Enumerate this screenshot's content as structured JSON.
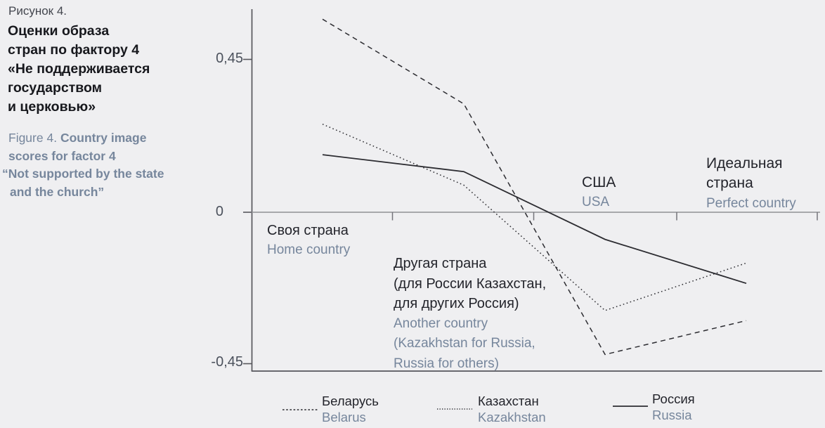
{
  "figure": {
    "label_ru": "Рисунок 4.",
    "title_ru_lines": [
      "Оценки образа",
      "стран по фактору 4",
      "«Не поддерживается",
      "государством",
      "и церковью»"
    ],
    "label_en": "Figure 4.",
    "title_en_bold_line1": "Country image",
    "title_en_lines": [
      "scores for factor 4",
      "“Not supported by the state",
      "and the church”"
    ]
  },
  "y_axis": {
    "tick_labels": [
      "0,45",
      "0",
      "-0,45"
    ]
  },
  "category_labels": {
    "home": {
      "ru": "Своя страна",
      "en": "Home country"
    },
    "another": {
      "ru_lines": [
        "Другая страна",
        "(для России Казахстан,",
        "для других Россия)"
      ],
      "en_lines": [
        "Another country",
        "(Kazakhstan for Russia,",
        "Russia for others)"
      ]
    },
    "usa": {
      "ru": "США",
      "en": "USA"
    },
    "perfect": {
      "ru_lines": [
        "Идеальная",
        "страна"
      ],
      "en": "Perfect country"
    }
  },
  "legend": {
    "items": [
      {
        "ru": "Беларусь",
        "en": "Belarus",
        "style": "dashed"
      },
      {
        "ru": "Казахстан",
        "en": "Kazakhstan",
        "style": "dotted"
      },
      {
        "ru": "Россия",
        "en": "Russia",
        "style": "solid"
      }
    ]
  },
  "colors": {
    "background": "#efeff1",
    "text_dark": "#1e1f24",
    "text_blue_gray": "#76869c",
    "series_line": "#2c2c31",
    "axis": "#56565c",
    "zero_line": "#8f9094"
  },
  "chart_data": {
    "type": "line",
    "categories": [
      "Своя страна (Home country)",
      "Другая страна (Another country)",
      "США (USA)",
      "Идеальная страна (Perfect country)"
    ],
    "series": [
      {
        "name": "Беларусь (Belarus)",
        "line_style": "dashed",
        "values": [
          0.57,
          0.32,
          -0.42,
          -0.32
        ]
      },
      {
        "name": "Казахстан (Kazakhstan)",
        "line_style": "dotted",
        "values": [
          0.26,
          0.08,
          -0.29,
          -0.15
        ]
      },
      {
        "name": "Россия (Russia)",
        "line_style": "solid",
        "values": [
          0.17,
          0.12,
          -0.08,
          -0.21
        ]
      }
    ],
    "y_ticks": [
      0.45,
      0,
      -0.45
    ],
    "ylim": [
      -0.47,
      0.62
    ],
    "grid": false,
    "legend_position": "bottom"
  }
}
